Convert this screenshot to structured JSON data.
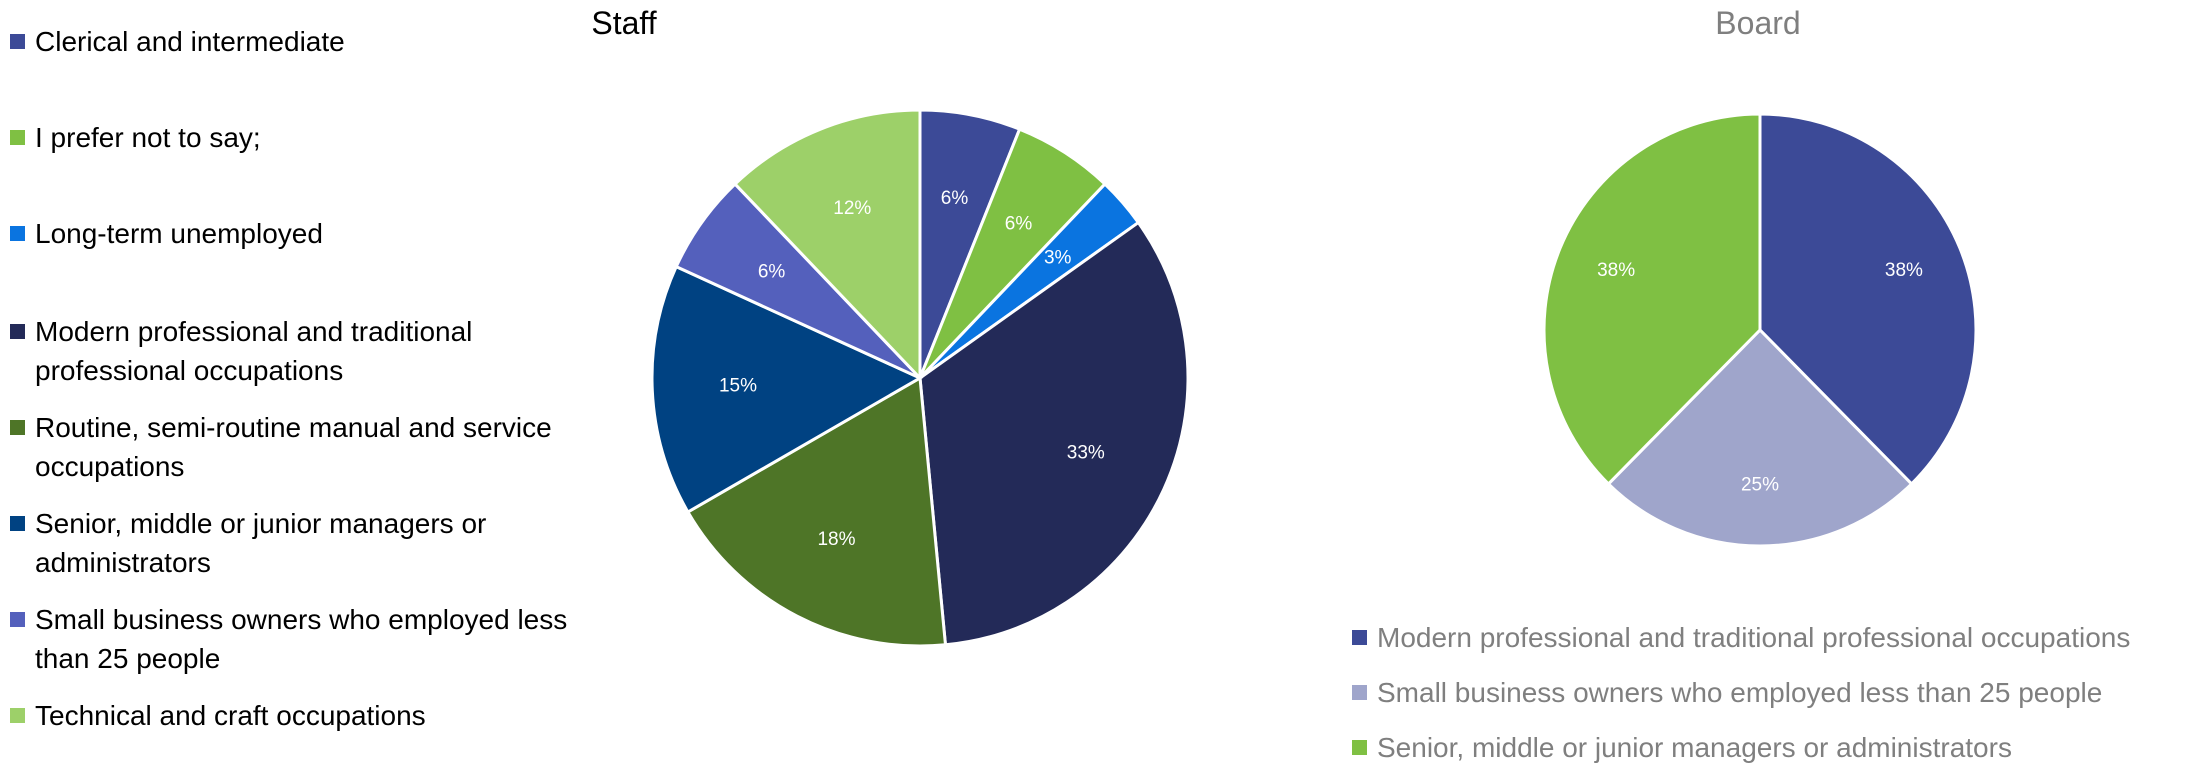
{
  "chart_data": [
    {
      "type": "pie",
      "title": "Staff",
      "slices": [
        {
          "label": "Clerical and intermediate",
          "value": 6,
          "display": "6%",
          "color": "#3c4a97"
        },
        {
          "label": "I prefer not to say;",
          "value": 6,
          "display": "6%",
          "color": "#7fc043"
        },
        {
          "label": "Long-term unemployed",
          "value": 3,
          "display": "3%",
          "color": "#0a74e0"
        },
        {
          "label": "Modern professional and traditional professional occupations",
          "value": 33,
          "display": "33%",
          "color": "#232a58"
        },
        {
          "label": "Routine, semi-routine manual and service occupations",
          "value": 18,
          "display": "18%",
          "color": "#4e7527"
        },
        {
          "label": "Senior, middle or junior managers or administrators",
          "value": 15,
          "display": "15%",
          "color": "#004282"
        },
        {
          "label": "Small business owners who employed less than 25 people",
          "value": 6,
          "display": "6%",
          "color": "#5460bc"
        },
        {
          "label": "Technical and craft occupations",
          "value": 12,
          "display": "12%",
          "color": "#9dd069"
        }
      ],
      "legend_position": "left"
    },
    {
      "type": "pie",
      "title": "Board",
      "slices": [
        {
          "label": "Modern professional and traditional professional occupations",
          "value": 38,
          "display": "38%",
          "color": "#3c4a97"
        },
        {
          "label": "Small business owners who employed less than 25 people",
          "value": 25,
          "display": "25%",
          "color": "#9fa5cb"
        },
        {
          "label": "Senior, middle or junior managers or administrators",
          "value": 38,
          "display": "38%",
          "color": "#7fc043"
        }
      ],
      "legend_position": "bottom"
    }
  ]
}
